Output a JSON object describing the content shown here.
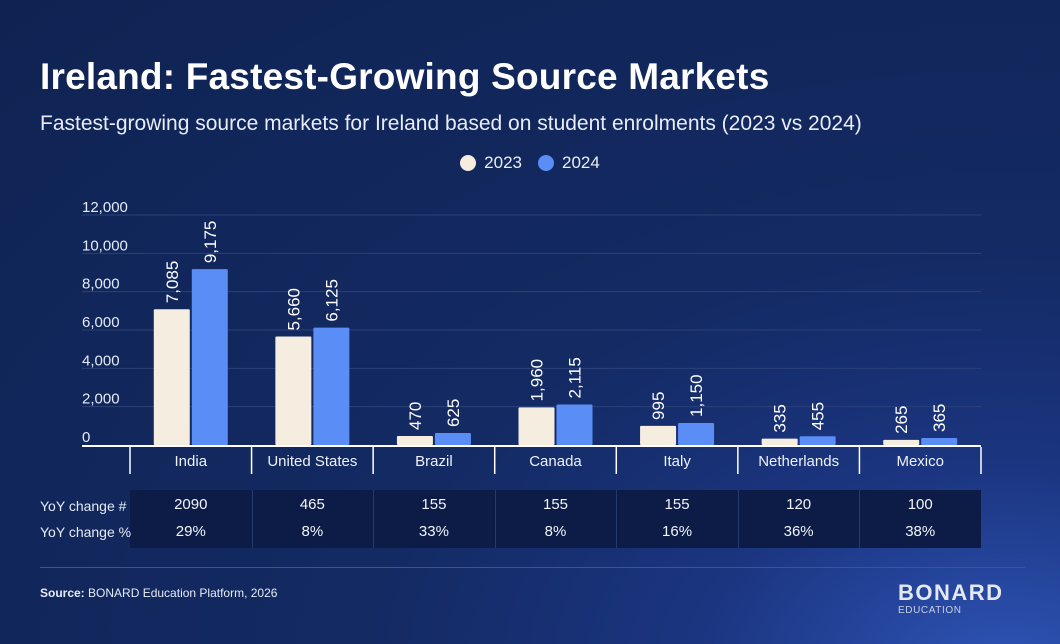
{
  "title": "Ireland: Fastest-Growing Source Markets",
  "subtitle": "Fastest-growing source markets for Ireland based on student enrolments (2023 vs 2024)",
  "colors": {
    "series_2023": "#f5ede0",
    "series_2024": "#5b8df7",
    "background": "#132a63"
  },
  "chart_data": {
    "type": "bar",
    "title": "Ireland: Fastest-Growing Source Markets",
    "subtitle": "Fastest-growing source markets for Ireland based on student enrolments (2023 vs 2024)",
    "categories": [
      "India",
      "United States",
      "Brazil",
      "Canada",
      "Italy",
      "Netherlands",
      "Mexico"
    ],
    "series": [
      {
        "name": "2023",
        "values": [
          7085,
          5660,
          470,
          1960,
          995,
          335,
          265
        ],
        "labels": [
          "7,085",
          "5,660",
          "470",
          "1,960",
          "995",
          "335",
          "265"
        ]
      },
      {
        "name": "2024",
        "values": [
          9175,
          6125,
          625,
          2115,
          1150,
          455,
          365
        ],
        "labels": [
          "9,175",
          "6,125",
          "625",
          "2,115",
          "1,150",
          "455",
          "365"
        ]
      }
    ],
    "yticks": [
      "0",
      "2,000",
      "4,000",
      "6,000",
      "8,000",
      "10,000",
      "12,000"
    ],
    "ylim": [
      0,
      12000
    ],
    "xlabel": "",
    "ylabel": "",
    "grid": true,
    "legend": "top-center"
  },
  "table": {
    "rows": [
      {
        "label": "YoY change #",
        "values": [
          "2090",
          "465",
          "155",
          "155",
          "155",
          "120",
          "100"
        ]
      },
      {
        "label": "YoY change %",
        "values": [
          "29%",
          "8%",
          "33%",
          "8%",
          "16%",
          "36%",
          "38%"
        ]
      }
    ]
  },
  "source": {
    "label": "Source:",
    "text": "BONARD Education Platform, 2026"
  },
  "logo": {
    "main": "BONARD",
    "sub": "EDUCATION"
  }
}
